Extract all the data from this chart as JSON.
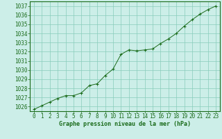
{
  "x": [
    0,
    1,
    2,
    3,
    4,
    5,
    6,
    7,
    8,
    9,
    10,
    11,
    12,
    13,
    14,
    15,
    16,
    17,
    18,
    19,
    20,
    21,
    22,
    23
  ],
  "y": [
    1025.7,
    1026.1,
    1026.5,
    1026.9,
    1027.2,
    1027.2,
    1027.5,
    1028.3,
    1028.5,
    1029.4,
    1030.1,
    1031.7,
    1032.2,
    1032.1,
    1032.2,
    1032.3,
    1032.9,
    1033.4,
    1034.0,
    1034.8,
    1035.5,
    1036.1,
    1036.6,
    1037.0
  ],
  "xlim": [
    -0.5,
    23.5
  ],
  "ylim": [
    1025.5,
    1037.5
  ],
  "yticks": [
    1026,
    1027,
    1028,
    1029,
    1030,
    1031,
    1032,
    1033,
    1034,
    1035,
    1036,
    1037
  ],
  "xticks": [
    0,
    1,
    2,
    3,
    4,
    5,
    6,
    7,
    8,
    9,
    10,
    11,
    12,
    13,
    14,
    15,
    16,
    17,
    18,
    19,
    20,
    21,
    22,
    23
  ],
  "line_color": "#1a6b1a",
  "marker_color": "#1a6b1a",
  "bg_color": "#cceee8",
  "grid_color": "#88ccbb",
  "xlabel": "Graphe pression niveau de la mer (hPa)",
  "xlabel_color": "#1a6b1a",
  "tick_color": "#1a6b1a",
  "border_color": "#1a6b1a"
}
